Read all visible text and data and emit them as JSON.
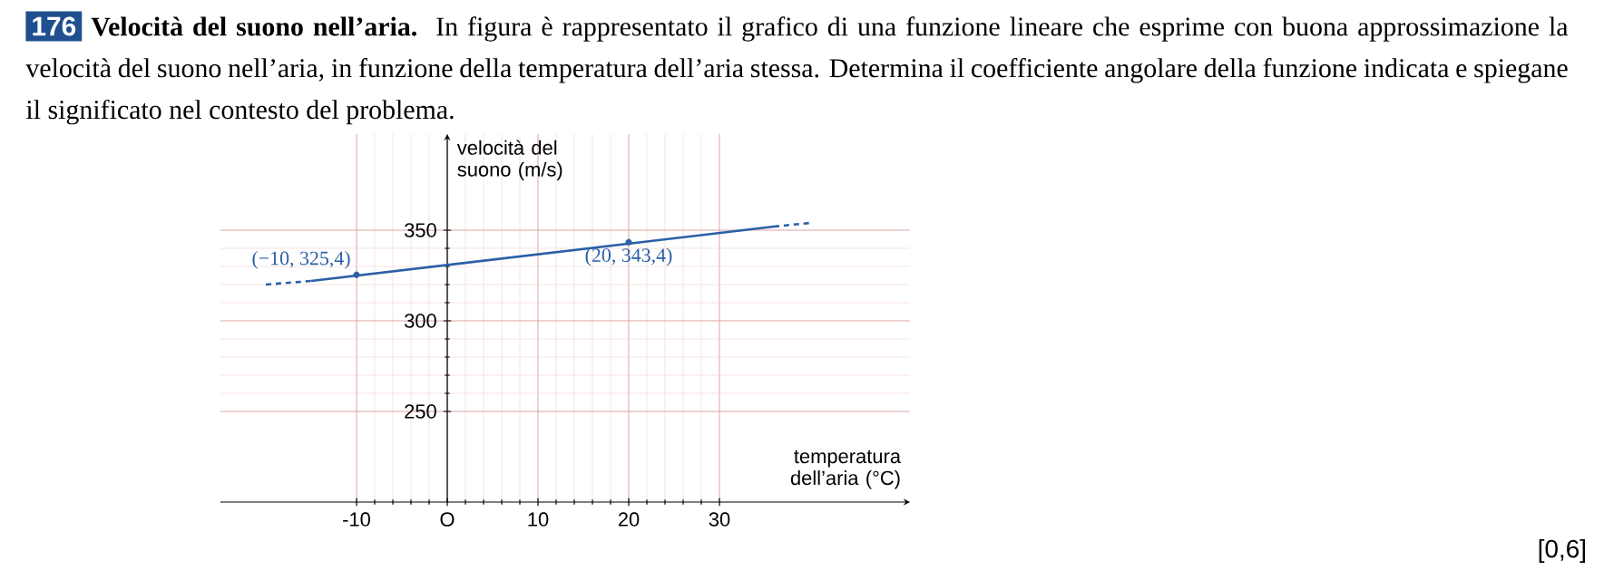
{
  "chart_data": {
    "type": "line",
    "title": "Velocità del suono nell’aria.",
    "subtitle": "In figura è rappresentato il grafico di una funzione lineare che esprime con buona approssimazione la velocità del suono nell’aria, in funzione della temperatura dell’aria stessa. Determina il coefficiente angolare della funzione indicata e spiegane il significato nel contesto del problema.",
    "xlabel": "temperatura dell’aria (°C)",
    "ylabel": "velocità del suono (m/s)",
    "annotations": [
      "176",
      {
        "text": "(−10, 325,4)",
        "x": -10,
        "y": 325.4
      },
      {
        "text": "(20, 343,4)",
        "x": 20,
        "y": 343.4
      },
      "[0,6]"
    ],
    "xlim": [
      -25,
      51
    ],
    "ylim": [
      200,
      403
    ],
    "xticks": [
      -10,
      {
        "value": 0,
        "label": "O"
      },
      10,
      20,
      30
    ],
    "yticks": [
      250,
      300,
      350
    ],
    "grid": true,
    "series": [
      {
        "x": [
          -15,
          36
        ],
        "values": [
          322,
          352
        ],
        "color": "#2b5fa6",
        "line_style": "solid",
        "marker": "none"
      },
      {
        "x": [
          -20,
          -15
        ],
        "values": [
          320,
          322
        ],
        "color": "#2b5fa6",
        "line_style": "dashed",
        "marker": "none"
      },
      {
        "x": [
          36,
          40
        ],
        "values": [
          352,
          354
        ],
        "color": "#2b5fa6",
        "line_style": "dashed",
        "marker": "none"
      },
      {
        "type": "scatter",
        "x": [
          -10,
          20
        ],
        "values": [
          325.4,
          343.4
        ],
        "color": "#2b5fa6",
        "marker": "circle"
      }
    ]
  }
}
